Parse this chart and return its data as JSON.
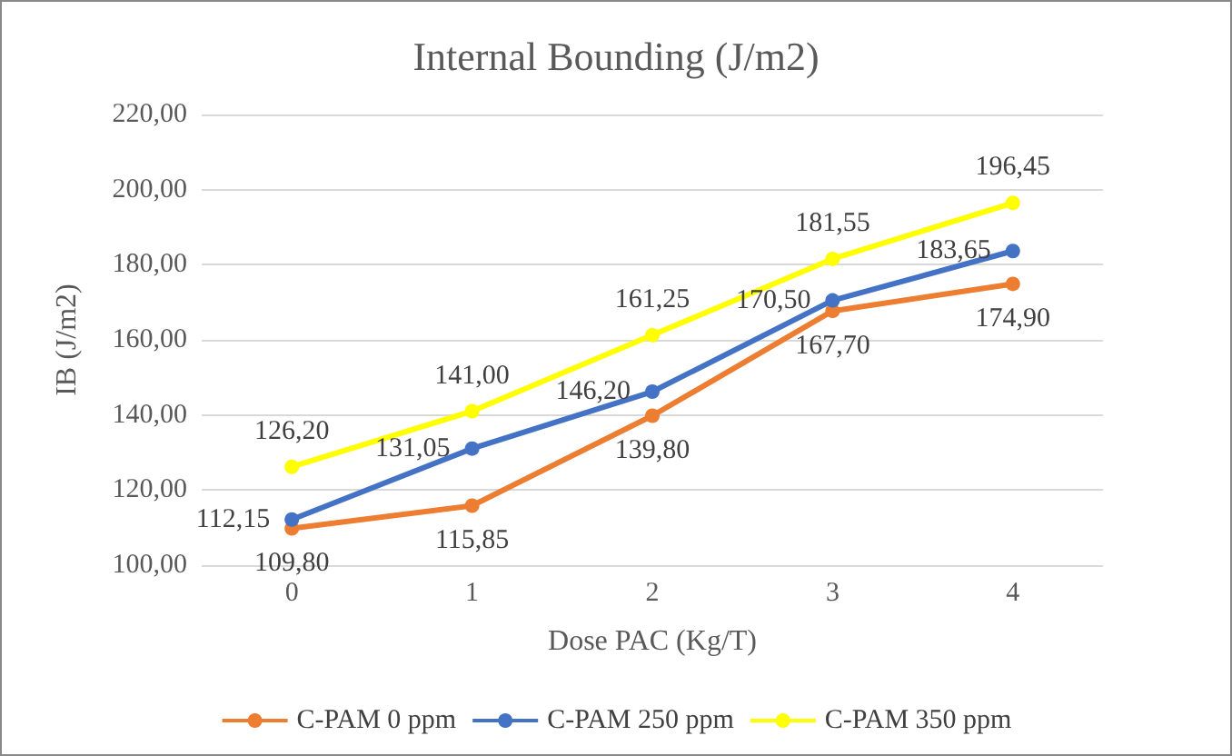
{
  "chart_data": {
    "type": "line",
    "title": "Internal Bounding (J/m2)",
    "xlabel": "Dose PAC (Kg/T)",
    "ylabel": "IB (J/m2)",
    "categories": [
      "0",
      "1",
      "2",
      "3",
      "4"
    ],
    "series": [
      {
        "name": "C-PAM 0 ppm",
        "color": "#ed7d31",
        "values": [
          109.8,
          115.85,
          139.8,
          167.7,
          174.9
        ],
        "value_labels": [
          "109,80",
          "115,85",
          "139,80",
          "167,70",
          "174,90"
        ]
      },
      {
        "name": "C-PAM 250 ppm",
        "color": "#4472c4",
        "values": [
          112.15,
          131.05,
          146.2,
          170.5,
          183.65
        ],
        "value_labels": [
          "112,15",
          "131,05",
          "146,20",
          "170,50",
          "183,65"
        ]
      },
      {
        "name": "C-PAM 350 ppm",
        "color": "#ffff00",
        "values": [
          126.2,
          141.0,
          161.25,
          181.55,
          196.45
        ],
        "value_labels": [
          "126,20",
          "141,00",
          "161,25",
          "181,55",
          "196,45"
        ]
      }
    ],
    "ylim": [
      100,
      220
    ],
    "yticks": [
      {
        "value": 100,
        "label": "100,00"
      },
      {
        "value": 120,
        "label": "120,00"
      },
      {
        "value": 140,
        "label": "140,00"
      },
      {
        "value": 160,
        "label": "160,00"
      },
      {
        "value": 180,
        "label": "180,00"
      },
      {
        "value": 200,
        "label": "200,00"
      },
      {
        "value": 220,
        "label": "220,00"
      }
    ],
    "grid": "y",
    "legend": "bottom",
    "marker": "circle",
    "line_style": "solid"
  }
}
